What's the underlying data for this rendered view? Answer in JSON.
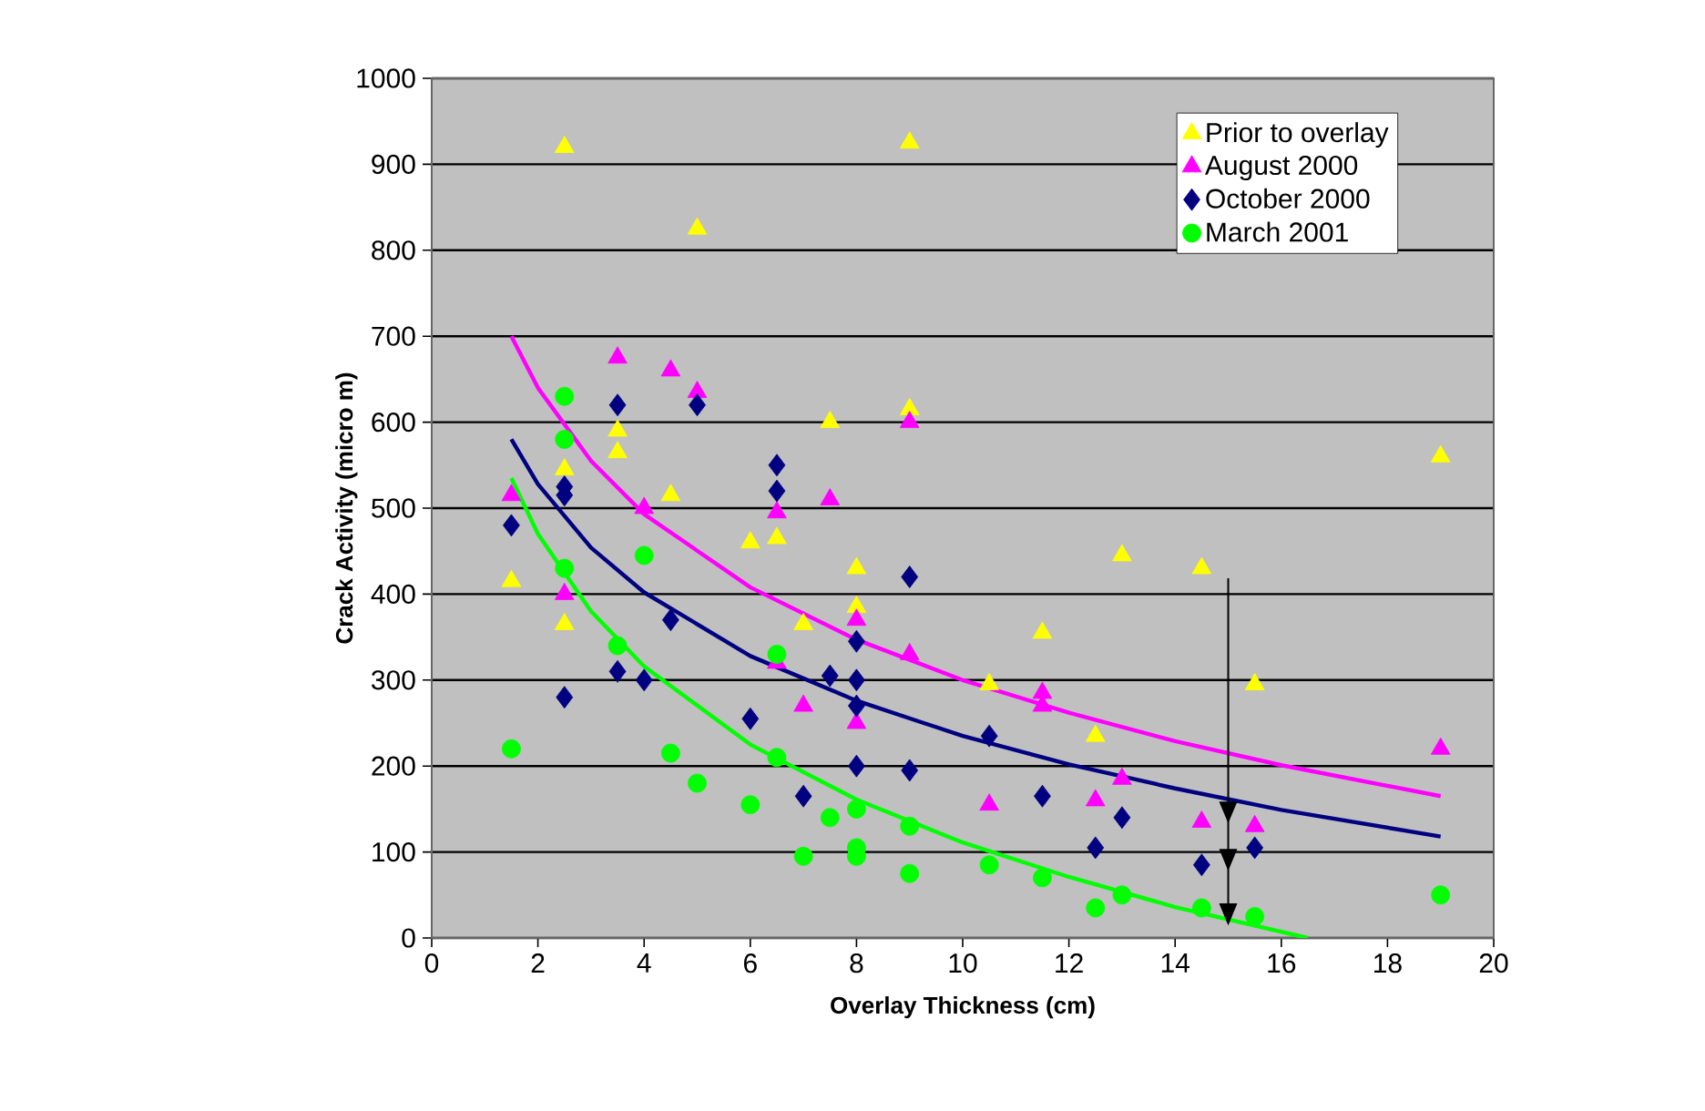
{
  "chart_data": {
    "type": "scatter",
    "xlabel": "Overlay Thickness (cm)",
    "ylabel": "Crack Activity (micro m)",
    "xlim": [
      0,
      20
    ],
    "xticks": [
      0,
      2,
      4,
      6,
      8,
      10,
      12,
      14,
      16,
      18,
      20
    ],
    "ylim": [
      0,
      1000
    ],
    "yticks": [
      0,
      100,
      200,
      300,
      400,
      500,
      600,
      700,
      800,
      900,
      1000
    ],
    "grid": "y",
    "legend": "top right",
    "series": [
      {
        "name": "Prior to overlay",
        "color": "#ffff00",
        "marker": "triangle",
        "x": [
          1.5,
          2.5,
          2.5,
          2.5,
          3.5,
          3.5,
          4.5,
          5,
          6,
          6.5,
          7,
          7.5,
          8,
          8,
          9,
          9,
          10.5,
          11.5,
          12.5,
          13,
          14.5,
          15.5,
          19
        ],
        "values": [
          415,
          920,
          545,
          365,
          590,
          565,
          515,
          825,
          460,
          465,
          365,
          600,
          430,
          385,
          925,
          615,
          295,
          355,
          235,
          445,
          430,
          295,
          560
        ]
      },
      {
        "name": "August 2000",
        "color": "#ff00ff",
        "marker": "triangle",
        "x": [
          1.5,
          2.5,
          3.5,
          4,
          4.5,
          5,
          6.5,
          6.5,
          7,
          7.5,
          8,
          8,
          9,
          9,
          10.5,
          11.5,
          11.5,
          12.5,
          13,
          14.5,
          15.5,
          19
        ],
        "values": [
          515,
          400,
          675,
          500,
          660,
          635,
          495,
          320,
          270,
          510,
          370,
          250,
          600,
          330,
          155,
          285,
          270,
          160,
          185,
          135,
          130,
          220
        ]
      },
      {
        "name": "October 2000",
        "color": "#000080",
        "marker": "diamond",
        "x": [
          1.5,
          2.5,
          2.5,
          2.5,
          3.5,
          3.5,
          4,
          4.5,
          5,
          6,
          6.5,
          6.5,
          7,
          7.5,
          8,
          8,
          8,
          8,
          9,
          9,
          10.5,
          11.5,
          12.5,
          13,
          14.5,
          15.5
        ],
        "values": [
          480,
          525,
          515,
          280,
          620,
          310,
          300,
          370,
          620,
          255,
          550,
          520,
          165,
          305,
          345,
          300,
          270,
          200,
          420,
          195,
          235,
          165,
          105,
          140,
          85,
          105
        ]
      },
      {
        "name": "March 2001",
        "color": "#00ff00",
        "marker": "circle",
        "x": [
          1.5,
          2.5,
          2.5,
          2.5,
          3.5,
          4,
          4.5,
          5,
          6,
          6.5,
          6.5,
          7,
          7.5,
          8,
          8,
          8,
          9,
          9,
          10.5,
          11.5,
          12.5,
          13,
          14.5,
          15.5,
          19
        ],
        "values": [
          220,
          630,
          580,
          430,
          340,
          445,
          215,
          180,
          155,
          330,
          210,
          95,
          140,
          150,
          105,
          95,
          130,
          75,
          85,
          70,
          35,
          50,
          35,
          25,
          50
        ]
      },
      {
        "type": "line",
        "color": "#ff00ff",
        "marker": "none",
        "x": [
          1.5,
          2,
          3,
          4,
          6,
          8,
          10,
          12,
          14,
          16,
          19
        ],
        "values": [
          700,
          640,
          555,
          493,
          408,
          347,
          300,
          262,
          229,
          201,
          165
        ]
      },
      {
        "type": "line",
        "color": "#000080",
        "marker": "none",
        "x": [
          1.5,
          2,
          3,
          4,
          6,
          8,
          10,
          12,
          14,
          16,
          19
        ],
        "values": [
          580,
          528,
          454,
          402,
          328,
          276,
          235,
          202,
          174,
          149,
          118
        ]
      },
      {
        "type": "line",
        "color": "#00ff00",
        "marker": "none",
        "x": [
          1.5,
          2,
          3,
          4,
          6,
          8,
          10,
          12,
          14,
          16.5
        ],
        "values": [
          535,
          470,
          380,
          316,
          225,
          161,
          111,
          71,
          36,
          0
        ]
      }
    ]
  }
}
